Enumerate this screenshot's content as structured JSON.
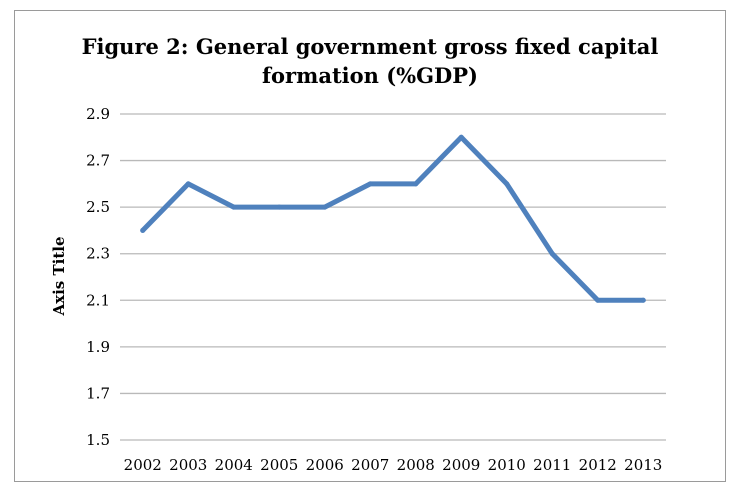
{
  "chart_data": {
    "type": "line",
    "title": "Figure 2: General government gross fixed capital\nformation (%GDP)",
    "xlabel": "",
    "ylabel": "Axis Title",
    "categories": [
      "2002",
      "2003",
      "2004",
      "2005",
      "2006",
      "2007",
      "2008",
      "2009",
      "2010",
      "2011",
      "2012",
      "2013"
    ],
    "series": [
      {
        "values": [
          2.4,
          2.6,
          2.5,
          2.5,
          2.5,
          2.6,
          2.6,
          2.8,
          2.6,
          2.3,
          2.1,
          2.1
        ]
      }
    ],
    "ylim": [
      1.5,
      2.9
    ],
    "yticks": [
      "1.5",
      "1.7",
      "1.9",
      "2.1",
      "2.3",
      "2.5",
      "2.7",
      "2.9"
    ],
    "grid": true,
    "legend": "none",
    "line_color": "#4f81bd"
  }
}
